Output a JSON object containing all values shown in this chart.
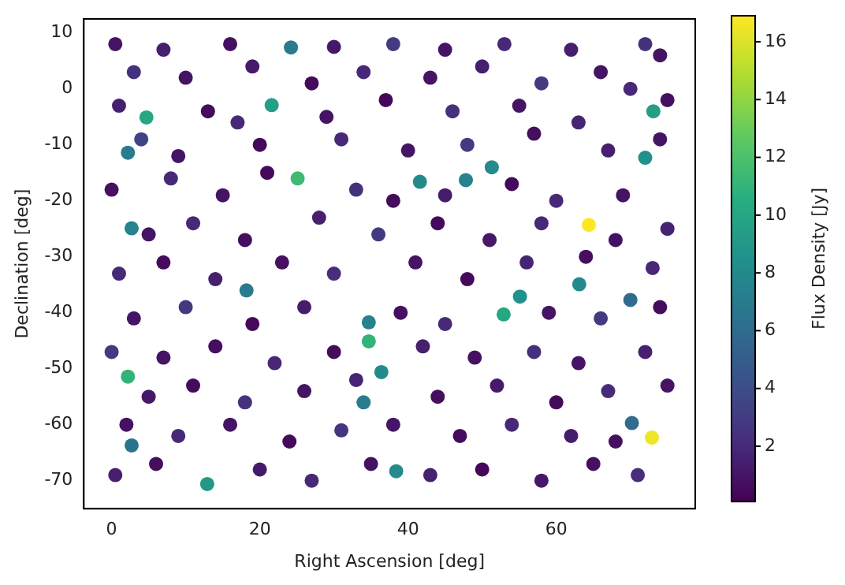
{
  "chart_data": {
    "type": "scatter",
    "xlabel": "Right Ascension [deg]",
    "ylabel": "Declination [deg]",
    "clabel": "Flux Density [Jy]",
    "marker": "circle",
    "xlim": [
      -3.75,
      78.75
    ],
    "xticks": [
      0,
      20,
      40,
      60
    ],
    "ylim": [
      -75,
      12.5
    ],
    "yticks": [
      -70,
      -60,
      -50,
      -40,
      -30,
      -20,
      -10,
      0,
      10
    ],
    "clim": [
      0.09,
      16.9
    ],
    "cticks": [
      2,
      4,
      6,
      8,
      10,
      12,
      14,
      16
    ],
    "x": [
      64.4,
      72.9,
      4.7,
      21.6,
      25.1,
      2.2,
      34.7,
      12.9,
      2.7,
      2.2,
      24.2,
      36.4,
      34.7,
      18.2,
      34,
      2.7,
      73.1,
      72,
      51.3,
      41.6,
      47.8,
      55.1,
      52.9,
      63.1,
      70,
      38.4,
      70.2,
      0.5,
      7,
      16,
      30,
      38,
      45,
      53,
      62,
      72,
      74,
      3,
      10,
      19,
      27,
      34,
      43,
      50,
      58,
      66,
      70,
      1,
      13,
      17,
      29,
      37,
      46,
      55,
      63,
      75,
      4,
      9,
      20,
      31,
      40,
      48,
      57,
      67,
      74,
      0,
      8,
      15,
      21,
      33,
      38,
      45,
      54,
      60,
      69,
      5,
      11,
      18,
      28,
      36,
      44,
      51,
      58,
      68,
      75,
      1,
      7,
      14,
      23,
      30,
      41,
      48,
      56,
      64,
      73,
      3,
      10,
      19,
      26,
      39,
      45,
      59,
      66,
      74,
      0,
      7,
      14,
      22,
      30,
      42,
      49,
      57,
      63,
      72,
      5,
      11,
      18,
      26,
      33,
      44,
      52,
      60,
      67,
      75,
      2,
      9,
      16,
      24,
      31,
      38,
      47,
      54,
      62,
      68,
      0.5,
      6,
      20,
      27,
      35,
      43,
      50,
      58,
      65,
      71
    ],
    "values": [
      -24.3,
      -62.3,
      -5.1,
      -2.9,
      -16,
      -51.4,
      -45.1,
      -70.6,
      -24.9,
      -11.4,
      7.4,
      -50.6,
      -41.7,
      -36,
      -56,
      -63.7,
      -4,
      -12.3,
      -14,
      -16.6,
      -16.3,
      -37.1,
      -40.3,
      -34.9,
      -37.7,
      -68.3,
      -59.7,
      8,
      7,
      8,
      7.5,
      8,
      7,
      8,
      7,
      8,
      6,
      3,
      2,
      4,
      1,
      3,
      2,
      4,
      1,
      3,
      0,
      -3,
      -4,
      -6,
      -5,
      -2,
      -4,
      -3,
      -6,
      -2,
      -9,
      -12,
      -10,
      -9,
      -11,
      -10,
      -8,
      -11,
      -9,
      -18,
      -16,
      -19,
      -15,
      -18,
      -20,
      -19,
      -17,
      -20,
      -19,
      -26,
      -24,
      -27,
      -23,
      -26,
      -24,
      -27,
      -24,
      -27,
      -25,
      -33,
      -31,
      -34,
      -31,
      -33,
      -31,
      -34,
      -31,
      -30,
      -32,
      -41,
      -39,
      -42,
      -39,
      -40,
      -42,
      -40,
      -41,
      -39,
      -47,
      -48,
      -46,
      -49,
      -47,
      -46,
      -48,
      -47,
      -49,
      -47,
      -55,
      -53,
      -56,
      -54,
      -52,
      -55,
      -53,
      -56,
      -54,
      -53,
      -60,
      -62,
      -60,
      -63,
      -61,
      -60,
      -62,
      -60,
      -62,
      -63,
      -69,
      -67,
      -68,
      -70,
      -67,
      -69,
      -68,
      -70,
      -67,
      -69
    ],
    "cvalues": [
      16.9,
      16.5,
      10,
      9.5,
      11.5,
      11,
      11,
      9,
      7.5,
      7,
      7,
      8,
      7.5,
      7,
      7,
      6.5,
      9.5,
      8.5,
      8,
      8,
      7.5,
      8.5,
      10,
      8,
      6,
      8,
      6,
      1,
      1.5,
      0.8,
      1.2,
      3,
      1,
      2,
      1.5,
      2.5,
      1,
      2.5,
      1,
      1.3,
      0.5,
      2,
      1,
      1.5,
      3,
      1,
      2,
      1.5,
      0.6,
      2,
      1,
      0.4,
      2.5,
      1,
      1.8,
      0.8,
      3.5,
      1,
      0.5,
      2,
      1,
      3,
      0.7,
      1.5,
      1,
      0.8,
      2,
      1,
      0.5,
      2.5,
      0.6,
      1.4,
      0.5,
      2,
      1,
      1,
      2,
      0.7,
      1.5,
      3,
      0.5,
      1.2,
      2,
      0.9,
      1.7,
      2,
      0.6,
      1.5,
      0.8,
      2.2,
      1,
      0.5,
      1.8,
      0.7,
      2,
      1,
      2.8,
      0.5,
      1.4,
      0.8,
      2,
      1,
      3,
      0.6,
      3,
      1,
      0.7,
      1.9,
      0.6,
      1.5,
      0.9,
      2.3,
      1,
      1.6,
      1.2,
      0.6,
      2.4,
      1,
      1.8,
      0.7,
      1.3,
      0.5,
      2.1,
      1,
      0.9,
      2,
      1,
      0.5,
      2.6,
      1.1,
      0.6,
      2,
      1.4,
      0.8,
      1.5,
      0.7,
      1.3,
      2,
      0.9,
      1.6,
      0.4,
      1.2,
      0.8,
      2.2
    ]
  }
}
